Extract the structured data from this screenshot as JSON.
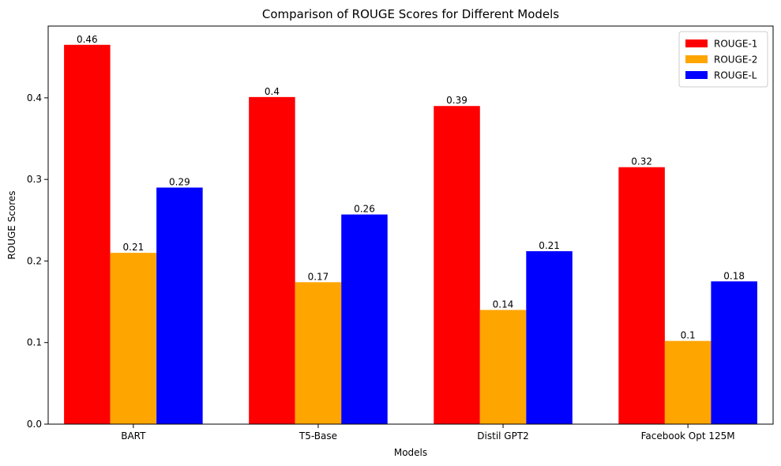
{
  "chart_data": {
    "type": "bar",
    "title": "Comparison of ROUGE Scores for Different Models",
    "xlabel": "Models",
    "ylabel": "ROUGE Scores",
    "categories": [
      "BART",
      "T5-Base",
      "Distil GPT2",
      "Facebook Opt 125M"
    ],
    "series": [
      {
        "name": "ROUGE-1",
        "color": "#ff0000",
        "values": [
          0.465,
          0.401,
          0.39,
          0.315
        ],
        "labels": [
          "0.46",
          "0.4",
          "0.39",
          "0.32"
        ]
      },
      {
        "name": "ROUGE-2",
        "color": "#ffa500",
        "values": [
          0.21,
          0.174,
          0.14,
          0.102
        ],
        "labels": [
          "0.21",
          "0.17",
          "0.14",
          "0.1"
        ]
      },
      {
        "name": "ROUGE-L",
        "color": "#0000ff",
        "values": [
          0.29,
          0.257,
          0.212,
          0.175
        ],
        "labels": [
          "0.29",
          "0.26",
          "0.21",
          "0.18"
        ]
      }
    ],
    "ylim": [
      0,
      0.488
    ],
    "yticks": [
      0.0,
      0.1,
      0.2,
      0.3,
      0.4
    ],
    "ytick_labels": [
      "0.0",
      "0.1",
      "0.2",
      "0.3",
      "0.4"
    ],
    "grid": false,
    "legend_position": "top-right"
  }
}
